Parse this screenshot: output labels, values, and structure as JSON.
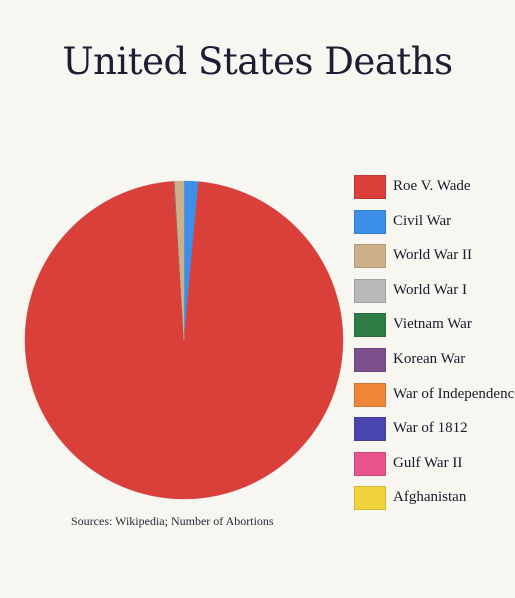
{
  "chart_data": {
    "type": "pie",
    "title": "United States Deaths",
    "slices": [
      {
        "label": "Roe V. Wade",
        "value": 97.6,
        "color": "#d9403a"
      },
      {
        "label": "Civil War",
        "value": 1.45,
        "color": "#3b8fe8"
      },
      {
        "label": "World War II",
        "value": 0.9,
        "color": "#cdb08a"
      },
      {
        "label": "World War I",
        "value": 0.03,
        "color": "#b8b8b8"
      },
      {
        "label": "Vietnam War",
        "value": 0.02,
        "color": "#2e7d46"
      },
      {
        "label": "Korean War",
        "value": 0.01,
        "color": "#7d4f8c"
      },
      {
        "label": "War of Independence",
        "value": 0.01,
        "color": "#ef8637"
      },
      {
        "label": "War of 1812",
        "value": 0.01,
        "color": "#4a46b0"
      },
      {
        "label": "Gulf War II",
        "value": 0.01,
        "color": "#e8558a"
      },
      {
        "label": "Afghanistan",
        "value": 0.01,
        "color": "#f2d23c"
      }
    ],
    "legend_position": "right"
  },
  "footer": {
    "sources": "Sources: Wikipedia; Number of Abortions"
  }
}
